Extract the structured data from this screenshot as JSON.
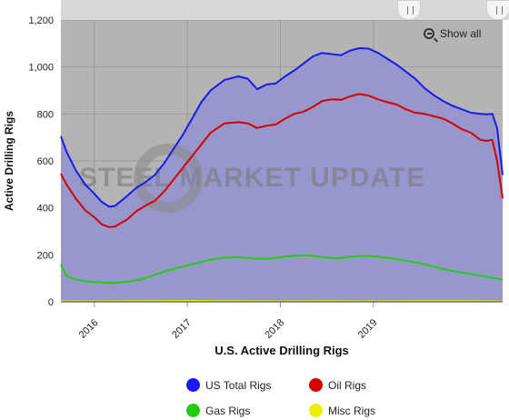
{
  "chart_data": {
    "type": "area",
    "title": "",
    "watermark": "STEEL MARKET UPDATE",
    "xlabel": "U.S. Active Drilling Rigs",
    "ylabel": "Active Drilling Rigs",
    "ylim": [
      0,
      1200
    ],
    "yticks": [
      0,
      200,
      400,
      600,
      800,
      "1,000",
      "1,200"
    ],
    "xlim": [
      2015.64,
      2020.39
    ],
    "xticks": [
      {
        "label": "2016",
        "x": 2016.0
      },
      {
        "label": "2017",
        "x": 2017.0
      },
      {
        "label": "2018",
        "x": 2018.0
      },
      {
        "label": "2019",
        "x": 2019.0
      }
    ],
    "grid": true,
    "legend_position": "bottom",
    "series": [
      {
        "name": "US Total Rigs",
        "color": "#1a1aee",
        "x": [
          2015.64,
          2015.7,
          2015.8,
          2015.9,
          2016.0,
          2016.08,
          2016.16,
          2016.22,
          2016.35,
          2016.45,
          2016.55,
          2016.65,
          2016.75,
          2016.85,
          2016.95,
          2017.05,
          2017.15,
          2017.25,
          2017.4,
          2017.55,
          2017.65,
          2017.75,
          2017.85,
          2017.95,
          2018.05,
          2018.15,
          2018.25,
          2018.35,
          2018.45,
          2018.55,
          2018.65,
          2018.75,
          2018.85,
          2018.95,
          2019.05,
          2019.15,
          2019.25,
          2019.35,
          2019.45,
          2019.55,
          2019.65,
          2019.75,
          2019.85,
          2019.95,
          2020.05,
          2020.15,
          2020.22,
          2020.28,
          2020.33,
          2020.39
        ],
        "values": [
          705,
          640,
          560,
          500,
          460,
          425,
          405,
          408,
          450,
          485,
          510,
          540,
          590,
          650,
          710,
          780,
          850,
          900,
          945,
          960,
          950,
          905,
          925,
          930,
          960,
          985,
          1015,
          1045,
          1060,
          1055,
          1050,
          1070,
          1080,
          1078,
          1060,
          1035,
          1010,
          980,
          950,
          910,
          880,
          855,
          835,
          820,
          805,
          800,
          798,
          800,
          740,
          540
        ]
      },
      {
        "name": "Oil Rigs",
        "color": "#d40000",
        "x": [
          2015.64,
          2015.7,
          2015.8,
          2015.9,
          2016.0,
          2016.08,
          2016.16,
          2016.22,
          2016.35,
          2016.45,
          2016.55,
          2016.65,
          2016.75,
          2016.85,
          2016.95,
          2017.05,
          2017.15,
          2017.25,
          2017.4,
          2017.55,
          2017.65,
          2017.75,
          2017.85,
          2017.95,
          2018.05,
          2018.15,
          2018.25,
          2018.35,
          2018.45,
          2018.55,
          2018.65,
          2018.75,
          2018.85,
          2018.95,
          2019.05,
          2019.15,
          2019.25,
          2019.35,
          2019.45,
          2019.55,
          2019.65,
          2019.75,
          2019.85,
          2019.95,
          2020.05,
          2020.15,
          2020.22,
          2020.28,
          2020.33,
          2020.39
        ],
        "values": [
          545,
          500,
          440,
          390,
          360,
          330,
          318,
          320,
          350,
          385,
          410,
          430,
          470,
          520,
          570,
          620,
          670,
          720,
          760,
          765,
          760,
          740,
          750,
          755,
          780,
          800,
          810,
          830,
          855,
          862,
          860,
          875,
          885,
          878,
          862,
          850,
          840,
          820,
          805,
          800,
          790,
          780,
          760,
          735,
          720,
          690,
          685,
          690,
          600,
          440
        ]
      },
      {
        "name": "Gas Rigs",
        "color": "#22cc11",
        "x": [
          2015.64,
          2015.7,
          2015.8,
          2015.9,
          2016.0,
          2016.1,
          2016.2,
          2016.35,
          2016.5,
          2016.65,
          2016.8,
          2016.95,
          2017.1,
          2017.25,
          2017.4,
          2017.55,
          2017.7,
          2017.85,
          2018.0,
          2018.15,
          2018.3,
          2018.45,
          2018.6,
          2018.75,
          2018.9,
          2019.05,
          2019.2,
          2019.35,
          2019.5,
          2019.65,
          2019.8,
          2019.95,
          2020.1,
          2020.25,
          2020.39
        ],
        "values": [
          160,
          110,
          95,
          88,
          84,
          82,
          80,
          85,
          95,
          115,
          135,
          150,
          165,
          180,
          188,
          190,
          185,
          183,
          190,
          196,
          198,
          190,
          185,
          192,
          196,
          192,
          185,
          175,
          165,
          150,
          135,
          125,
          115,
          105,
          95
        ]
      },
      {
        "name": "Misc Rigs",
        "color": "#eeee00",
        "x": [
          2015.64,
          2016.0,
          2016.5,
          2017.0,
          2017.5,
          2018.0,
          2018.5,
          2019.0,
          2019.5,
          2020.0,
          2020.39
        ],
        "values": [
          2,
          2,
          3,
          4,
          3,
          2,
          3,
          2,
          3,
          3,
          2
        ]
      }
    ]
  },
  "legend": {
    "items": [
      {
        "label": "US Total Rigs",
        "color": "#1a1aee"
      },
      {
        "label": "Oil Rigs",
        "color": "#d40000"
      },
      {
        "label": "Gas Rigs",
        "color": "#22cc11"
      },
      {
        "label": "Misc Rigs",
        "color": "#eeee00"
      }
    ]
  },
  "controls": {
    "show_all_label": "Show all",
    "zoom_icon": "zoom-out-icon"
  },
  "colors": {
    "plot_background": "#b4b4b4",
    "area_fill": "#9797cc",
    "toolbar": "#d8d8d8"
  }
}
